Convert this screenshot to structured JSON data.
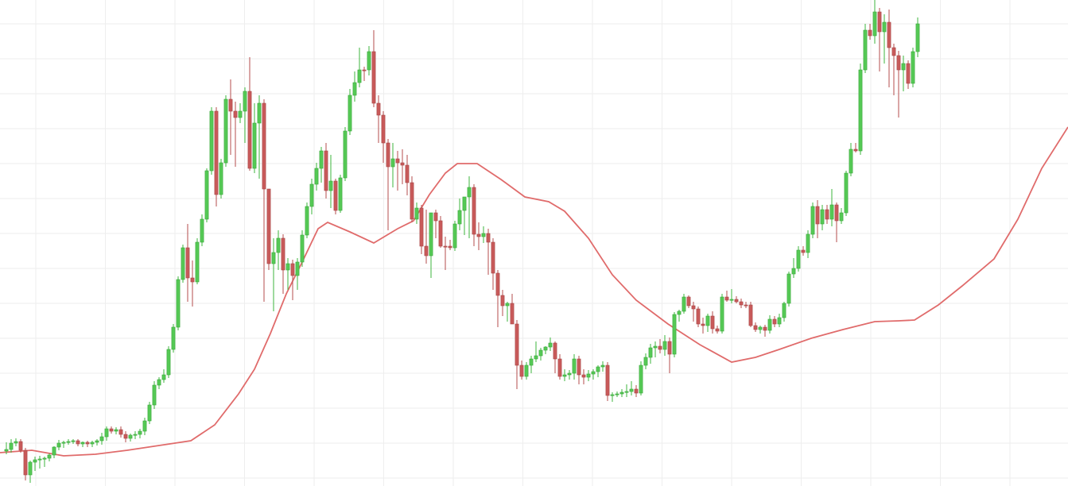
{
  "chart_data": {
    "type": "candlestick",
    "title": "",
    "xlabel": "",
    "ylabel": "",
    "ylim": [
      0,
      612
    ],
    "grid": true,
    "legend": "none",
    "colors": {
      "up": "#55c955",
      "down": "#c85a5a",
      "ma": "#e06b6b",
      "grid": "#eeeeee"
    },
    "candles": [
      [
        568,
        557,
        572,
        566
      ],
      [
        566,
        553,
        570,
        558
      ],
      [
        558,
        552,
        562,
        556
      ],
      [
        556,
        553,
        570,
        567
      ],
      [
        567,
        564,
        605,
        598
      ],
      [
        598,
        580,
        608,
        582
      ],
      [
        582,
        575,
        593,
        579
      ],
      [
        579,
        574,
        590,
        578
      ],
      [
        578,
        575,
        588,
        577
      ],
      [
        577,
        571,
        581,
        573
      ],
      [
        573,
        562,
        577,
        563
      ],
      [
        563,
        554,
        567,
        558
      ],
      [
        558,
        555,
        564,
        557
      ],
      [
        557,
        553,
        560,
        556
      ],
      [
        556,
        553,
        559,
        555
      ],
      [
        555,
        553,
        562,
        559
      ],
      [
        559,
        556,
        563,
        557
      ],
      [
        557,
        555,
        563,
        559
      ],
      [
        559,
        555,
        563,
        557
      ],
      [
        557,
        553,
        561,
        555
      ],
      [
        555,
        545,
        560,
        550
      ],
      [
        550,
        537,
        555,
        540
      ],
      [
        540,
        537,
        546,
        543
      ],
      [
        543,
        538,
        547,
        541
      ],
      [
        541,
        537,
        551,
        547
      ],
      [
        547,
        543,
        557,
        552
      ],
      [
        552,
        546,
        556,
        548
      ],
      [
        548,
        543,
        553,
        547
      ],
      [
        547,
        540,
        552,
        543
      ],
      [
        543,
        526,
        548,
        530
      ],
      [
        530,
        506,
        534,
        510
      ],
      [
        510,
        480,
        515,
        485
      ],
      [
        485,
        475,
        490,
        478
      ],
      [
        478,
        465,
        482,
        472
      ],
      [
        472,
        436,
        476,
        440
      ],
      [
        440,
        408,
        444,
        412
      ],
      [
        412,
        348,
        416,
        352
      ],
      [
        352,
        308,
        356,
        312
      ],
      [
        312,
        282,
        380,
        350
      ],
      [
        350,
        328,
        386,
        355
      ],
      [
        355,
        300,
        358,
        305
      ],
      [
        305,
        270,
        310,
        276
      ],
      [
        276,
        212,
        280,
        215
      ],
      [
        215,
        135,
        220,
        140
      ],
      [
        140,
        135,
        260,
        245
      ],
      [
        245,
        200,
        250,
        205
      ],
      [
        205,
        120,
        210,
        125
      ],
      [
        125,
        100,
        195,
        140
      ],
      [
        140,
        128,
        210,
        148
      ],
      [
        148,
        130,
        155,
        140
      ],
      [
        140,
        110,
        180,
        115
      ],
      [
        115,
        72,
        215,
        212
      ],
      [
        212,
        130,
        218,
        155
      ],
      [
        155,
        120,
        225,
        130
      ],
      [
        130,
        125,
        380,
        238
      ],
      [
        238,
        275,
        340,
        332
      ],
      [
        332,
        300,
        392,
        318
      ],
      [
        318,
        290,
        340,
        300
      ],
      [
        300,
        295,
        370,
        340
      ],
      [
        340,
        325,
        365,
        332
      ],
      [
        332,
        327,
        378,
        347
      ],
      [
        347,
        325,
        365,
        330
      ],
      [
        330,
        290,
        336,
        296
      ],
      [
        296,
        255,
        300,
        260
      ],
      [
        260,
        225,
        270,
        232
      ],
      [
        232,
        205,
        240,
        212
      ],
      [
        212,
        185,
        230,
        190
      ],
      [
        190,
        180,
        250,
        240
      ],
      [
        240,
        195,
        262,
        228
      ],
      [
        228,
        225,
        270,
        265
      ],
      [
        265,
        220,
        268,
        224
      ],
      [
        224,
        160,
        228,
        165
      ],
      [
        165,
        112,
        170,
        120
      ],
      [
        120,
        90,
        128,
        104
      ],
      [
        104,
        60,
        110,
        88
      ],
      [
        88,
        84,
        102,
        88
      ],
      [
        88,
        58,
        95,
        65
      ],
      [
        65,
        38,
        135,
        130
      ],
      [
        130,
        120,
        180,
        145
      ],
      [
        145,
        140,
        205,
        180
      ],
      [
        180,
        175,
        290,
        210
      ],
      [
        210,
        180,
        236,
        200
      ],
      [
        200,
        190,
        240,
        205
      ],
      [
        205,
        188,
        232,
        208
      ],
      [
        208,
        195,
        246,
        230
      ],
      [
        230,
        222,
        280,
        276
      ],
      [
        276,
        255,
        282,
        262
      ],
      [
        262,
        258,
        320,
        310
      ],
      [
        310,
        264,
        332,
        322
      ],
      [
        322,
        275,
        350,
        268
      ],
      [
        268,
        264,
        300,
        278
      ],
      [
        278,
        272,
        312,
        310
      ],
      [
        310,
        298,
        340,
        310
      ],
      [
        310,
        302,
        315,
        312
      ],
      [
        312,
        278,
        316,
        282
      ],
      [
        282,
        250,
        290,
        265
      ],
      [
        265,
        260,
        296,
        248
      ],
      [
        248,
        222,
        300,
        236
      ],
      [
        236,
        232,
        310,
        295
      ],
      [
        295,
        280,
        315,
        298
      ],
      [
        298,
        285,
        306,
        294
      ],
      [
        294,
        288,
        346,
        305
      ],
      [
        305,
        300,
        365,
        344
      ],
      [
        344,
        340,
        412,
        372
      ],
      [
        372,
        365,
        398,
        385
      ],
      [
        385,
        380,
        405,
        382
      ],
      [
        382,
        370,
        392,
        408
      ],
      [
        408,
        403,
        490,
        460
      ],
      [
        460,
        454,
        478,
        474
      ],
      [
        474,
        456,
        478,
        460
      ],
      [
        460,
        448,
        470,
        452
      ],
      [
        452,
        430,
        456,
        448
      ],
      [
        448,
        438,
        454,
        441
      ],
      [
        441,
        436,
        446,
        437
      ],
      [
        437,
        425,
        442,
        432
      ],
      [
        432,
        430,
        470,
        452
      ],
      [
        452,
        446,
        478,
        474
      ],
      [
        474,
        465,
        480,
        472
      ],
      [
        472,
        466,
        478,
        470
      ],
      [
        470,
        446,
        478,
        452
      ],
      [
        452,
        448,
        484,
        472
      ],
      [
        472,
        465,
        484,
        475
      ],
      [
        475,
        466,
        480,
        471
      ],
      [
        471,
        465,
        478,
        468
      ],
      [
        468,
        460,
        475,
        462
      ],
      [
        462,
        455,
        468,
        460
      ],
      [
        460,
        456,
        505,
        498
      ],
      [
        498,
        494,
        506,
        497
      ],
      [
        497,
        493,
        500,
        496
      ],
      [
        496,
        490,
        500,
        494
      ],
      [
        494,
        484,
        500,
        493
      ],
      [
        493,
        480,
        498,
        490
      ],
      [
        490,
        485,
        500,
        495
      ],
      [
        495,
        455,
        498,
        460
      ],
      [
        460,
        445,
        465,
        450
      ],
      [
        450,
        433,
        458,
        438
      ],
      [
        438,
        430,
        450,
        436
      ],
      [
        436,
        427,
        445,
        440
      ],
      [
        440,
        422,
        448,
        430
      ],
      [
        430,
        425,
        470,
        446
      ],
      [
        446,
        393,
        450,
        396
      ],
      [
        396,
        390,
        405,
        392
      ],
      [
        392,
        370,
        395,
        374
      ],
      [
        374,
        372,
        388,
        385
      ],
      [
        385,
        380,
        405,
        389
      ],
      [
        389,
        386,
        412,
        408
      ],
      [
        408,
        400,
        420,
        410
      ],
      [
        410,
        395,
        418,
        398
      ],
      [
        398,
        392,
        420,
        414
      ],
      [
        414,
        410,
        420,
        417
      ],
      [
        417,
        370,
        420,
        374
      ],
      [
        374,
        366,
        380,
        378
      ],
      [
        378,
        364,
        382,
        377
      ],
      [
        377,
        373,
        382,
        380
      ],
      [
        380,
        376,
        388,
        384
      ],
      [
        384,
        380,
        388,
        384
      ],
      [
        384,
        380,
        412,
        410
      ],
      [
        410,
        406,
        418,
        415
      ],
      [
        415,
        410,
        420,
        412
      ],
      [
        412,
        409,
        424,
        416
      ],
      [
        416,
        397,
        420,
        402
      ],
      [
        402,
        398,
        412,
        408
      ],
      [
        408,
        395,
        412,
        400
      ],
      [
        400,
        380,
        405,
        382
      ],
      [
        382,
        342,
        386,
        345
      ],
      [
        345,
        325,
        350,
        338
      ],
      [
        338,
        310,
        342,
        315
      ],
      [
        315,
        310,
        322,
        318
      ],
      [
        318,
        290,
        325,
        295
      ],
      [
        295,
        255,
        300,
        260
      ],
      [
        260,
        252,
        300,
        282
      ],
      [
        282,
        258,
        290,
        264
      ],
      [
        264,
        258,
        282,
        276
      ],
      [
        276,
        238,
        285,
        258
      ],
      [
        258,
        255,
        305,
        278
      ],
      [
        278,
        262,
        282,
        268
      ],
      [
        268,
        215,
        272,
        218
      ],
      [
        218,
        180,
        222,
        188
      ],
      [
        188,
        180,
        192,
        190
      ],
      [
        190,
        80,
        195,
        88
      ],
      [
        88,
        30,
        92,
        38
      ],
      [
        38,
        30,
        50,
        45
      ],
      [
        45,
        0,
        55,
        15
      ],
      [
        15,
        10,
        90,
        40
      ],
      [
        40,
        18,
        80,
        28
      ],
      [
        28,
        12,
        110,
        60
      ],
      [
        60,
        55,
        120,
        70
      ],
      [
        70,
        64,
        148,
        88
      ],
      [
        88,
        70,
        115,
        80
      ],
      [
        80,
        76,
        112,
        105
      ],
      [
        105,
        60,
        110,
        65
      ],
      [
        65,
        22,
        72,
        30
      ]
    ],
    "ma_line": [
      [
        0,
        570
      ],
      [
        40,
        567
      ],
      [
        80,
        574
      ],
      [
        120,
        572
      ],
      [
        160,
        567
      ],
      [
        200,
        561
      ],
      [
        240,
        555
      ],
      [
        270,
        535
      ],
      [
        300,
        496
      ],
      [
        320,
        465
      ],
      [
        340,
        420
      ],
      [
        360,
        370
      ],
      [
        380,
        330
      ],
      [
        400,
        288
      ],
      [
        412,
        280
      ],
      [
        440,
        292
      ],
      [
        470,
        306
      ],
      [
        500,
        288
      ],
      [
        520,
        278
      ],
      [
        540,
        245
      ],
      [
        560,
        218
      ],
      [
        575,
        206
      ],
      [
        600,
        206
      ],
      [
        630,
        226
      ],
      [
        660,
        248
      ],
      [
        690,
        254
      ],
      [
        710,
        266
      ],
      [
        740,
        300
      ],
      [
        770,
        346
      ],
      [
        800,
        378
      ],
      [
        840,
        408
      ],
      [
        880,
        434
      ],
      [
        920,
        456
      ],
      [
        950,
        450
      ],
      [
        980,
        440
      ],
      [
        1020,
        426
      ],
      [
        1060,
        415
      ],
      [
        1100,
        405
      ],
      [
        1130,
        404
      ],
      [
        1150,
        403
      ],
      [
        1180,
        384
      ],
      [
        1210,
        360
      ],
      [
        1250,
        326
      ],
      [
        1280,
        276
      ],
      [
        1310,
        212
      ],
      [
        1343,
        160
      ]
    ]
  }
}
